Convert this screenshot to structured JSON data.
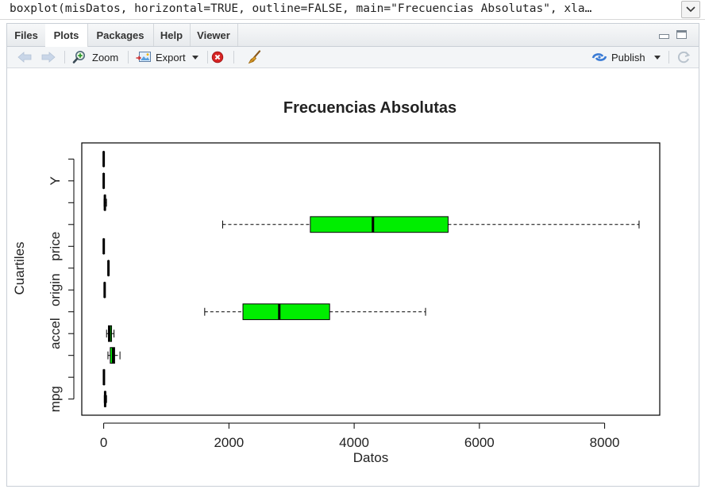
{
  "console": {
    "command": "boxplot(misDatos, horizontal=TRUE, outline=FALSE, main=\"Frecuencias Absolutas\", xla…"
  },
  "tabs": [
    {
      "label": "Files"
    },
    {
      "label": "Plots"
    },
    {
      "label": "Packages"
    },
    {
      "label": "Help"
    },
    {
      "label": "Viewer"
    }
  ],
  "toolbar": {
    "zoom_label": "Zoom",
    "export_label": "Export",
    "publish_label": "Publish"
  },
  "colors": {
    "box_fill": "#00ee00",
    "accent": "#3a7bd5"
  },
  "chart_data": {
    "type": "boxplot",
    "orientation": "horizontal",
    "title": "Frecuencias Absolutas",
    "xlabel": "Datos",
    "ylabel": "Cuartiles",
    "xlim": [
      -350,
      8880
    ],
    "x_ticks": [
      0,
      2000,
      4000,
      6000,
      8000
    ],
    "y_tick_labels": [
      "mpg",
      "accel",
      "origin",
      "price",
      "Y"
    ],
    "boxes": [
      {
        "min": 9,
        "q1": 17,
        "median": 23,
        "q3": 29,
        "max": 46
      },
      {
        "min": 4,
        "q1": 4,
        "median": 4,
        "q3": 6,
        "max": 8
      },
      {
        "min": 68,
        "q1": 105,
        "median": 151,
        "q3": 175,
        "max": 260
      },
      {
        "min": 46,
        "q1": 75,
        "median": 93,
        "q3": 126,
        "max": 165
      },
      {
        "min": 1613,
        "q1": 2224,
        "median": 2804,
        "q3": 3608,
        "max": 5140
      },
      {
        "min": 8,
        "q1": 13.8,
        "median": 15.5,
        "q3": 17.2,
        "max": 22.2
      },
      {
        "min": 70,
        "q1": 73,
        "median": 76,
        "q3": 79,
        "max": 82
      },
      {
        "min": 1,
        "q1": 1,
        "median": 1,
        "q3": 2,
        "max": 3
      },
      {
        "min": 1900,
        "q1": 3300,
        "median": 4300,
        "q3": 5500,
        "max": 8550
      },
      {
        "min": 5,
        "q1": 14,
        "median": 19,
        "q3": 27,
        "max": 45
      },
      {
        "min": 0,
        "q1": 0,
        "median": 0,
        "q3": 0,
        "max": 0
      },
      {
        "min": 0,
        "q1": 0,
        "median": 0,
        "q3": 1,
        "max": 1
      }
    ]
  }
}
